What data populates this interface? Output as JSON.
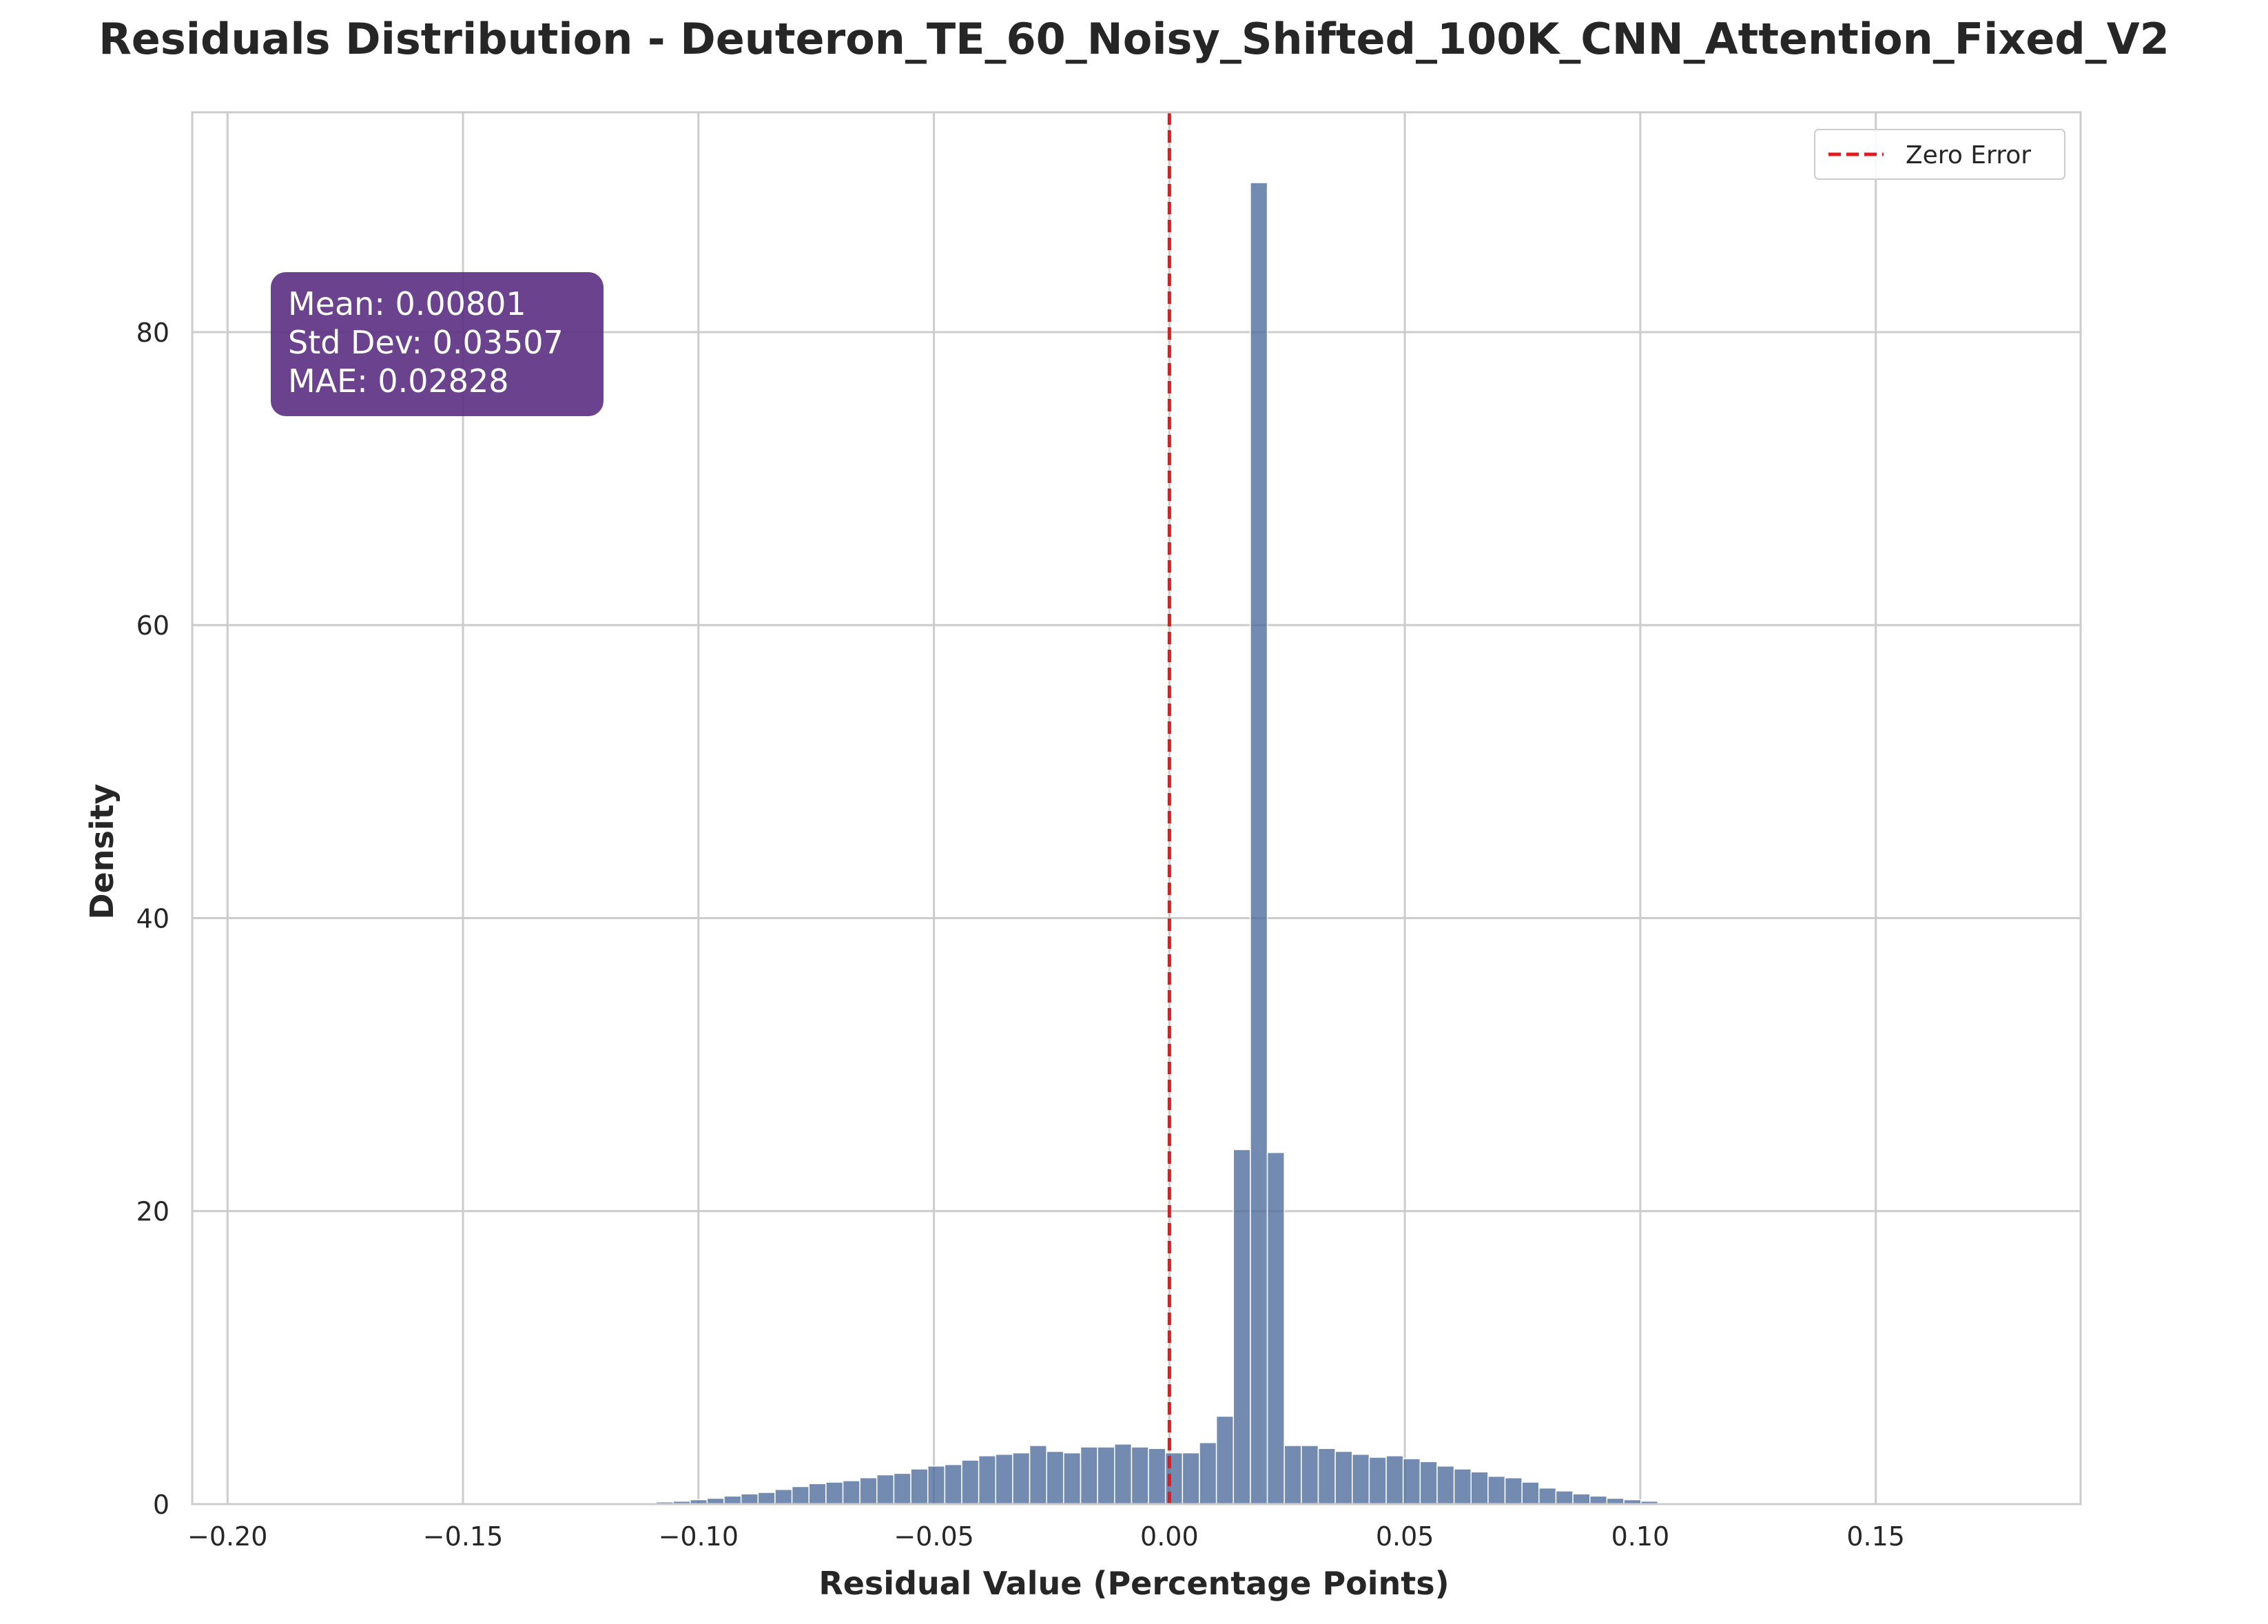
{
  "chart_data": {
    "type": "bar",
    "title": "Residuals Distribution - Deuteron_TE_60_Noisy_Shifted_100K_CNN_Attention_Fixed_V2",
    "xlabel": "Residual Value (Percentage Points)",
    "ylabel": "Density",
    "xlim": [
      -0.2075,
      0.1935
    ],
    "ylim": [
      0,
      95
    ],
    "xticks": [
      -0.2,
      -0.15,
      -0.1,
      -0.05,
      0.0,
      0.05,
      0.1,
      0.15
    ],
    "xtick_labels": [
      "−0.20",
      "−0.15",
      "−0.10",
      "−0.05",
      "0.00",
      "0.05",
      "0.10",
      "0.15"
    ],
    "yticks": [
      0,
      20,
      40,
      60,
      80
    ],
    "ytick_labels": [
      "0",
      "20",
      "40",
      "60",
      "80"
    ],
    "grid": true,
    "bin_start": -0.1991,
    "bin_width": 0.003605,
    "series": [
      {
        "color": "#4c6a9a",
        "values": [
          0,
          0,
          0,
          0,
          0,
          0,
          0,
          0,
          0,
          0,
          0,
          0,
          0,
          0,
          0,
          0,
          0,
          0,
          0,
          0,
          0,
          0,
          0,
          0.1,
          0.1,
          0.15,
          0.2,
          0.3,
          0.4,
          0.55,
          0.7,
          0.8,
          1.0,
          1.2,
          1.4,
          1.5,
          1.6,
          1.8,
          2.0,
          2.1,
          2.4,
          2.6,
          2.7,
          3.0,
          3.3,
          3.4,
          3.5,
          4.0,
          3.6,
          3.5,
          3.9,
          3.9,
          4.1,
          3.9,
          3.8,
          3.5,
          3.5,
          4.2,
          6.0,
          24.2,
          90.2,
          24.0,
          4.0,
          4.0,
          3.8,
          3.6,
          3.4,
          3.2,
          3.3,
          3.1,
          2.9,
          2.6,
          2.4,
          2.2,
          1.9,
          1.8,
          1.5,
          1.1,
          0.9,
          0.7,
          0.55,
          0.4,
          0.3,
          0.2,
          0.1,
          0.1,
          0,
          0,
          0,
          0,
          0,
          0,
          0,
          0,
          0,
          0,
          0,
          0,
          0,
          0,
          0,
          0,
          0,
          0,
          0,
          0,
          0,
          0,
          0,
          0,
          0,
          0
        ]
      }
    ],
    "reference_line": {
      "x": 0.0,
      "color": "#e31a1c",
      "style": "dashed",
      "label": "Zero Error"
    },
    "legend": {
      "position": "top-right",
      "entries": [
        "Zero Error"
      ]
    },
    "annotation": {
      "lines": [
        "Mean: 0.00801",
        "Std Dev: 0.03507",
        "MAE: 0.02828"
      ],
      "background": "#5a2d82",
      "position": "top-left"
    }
  }
}
